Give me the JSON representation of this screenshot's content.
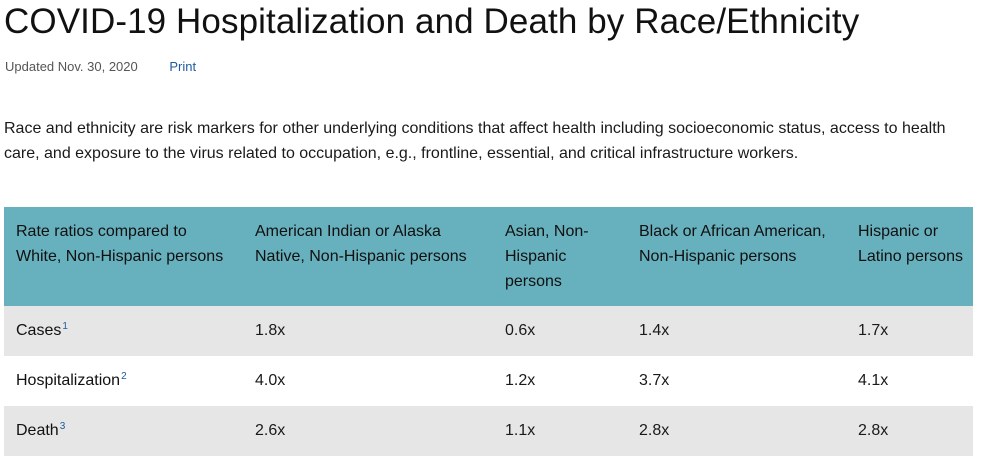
{
  "page": {
    "title": "COVID-19 Hospitalization and Death by Race/Ethnicity",
    "updated": "Updated Nov. 30, 2020",
    "print_label": "Print",
    "intro": "Race and ethnicity are risk markers for other underlying conditions that affect health including socioeconomic status, access to health care, and exposure to the virus related to occupation, e.g., frontline, essential, and critical infrastructure workers."
  },
  "table": {
    "headers": [
      "Rate ratios compared to White, Non-Hispanic persons",
      "American Indian or Alaska Native, Non-Hispanic persons",
      "Asian, Non-Hispanic persons",
      "Black or African American, Non-Hispanic persons",
      "Hispanic or Latino persons"
    ],
    "rows": [
      {
        "label": "Cases",
        "footnote": "1",
        "values": [
          "1.8x",
          "0.6x",
          "1.4x",
          "1.7x"
        ]
      },
      {
        "label": "Hospitalization",
        "footnote": "2",
        "values": [
          "4.0x",
          "1.2x",
          "3.7x",
          "4.1x"
        ]
      },
      {
        "label": "Death",
        "footnote": "3",
        "values": [
          "2.6x",
          "1.1x",
          "2.8x",
          "2.8x"
        ]
      }
    ]
  },
  "colors": {
    "header_bg": "#67b0bd",
    "shaded_row_bg": "#e6e6e6",
    "link": "#1d5b9e"
  }
}
